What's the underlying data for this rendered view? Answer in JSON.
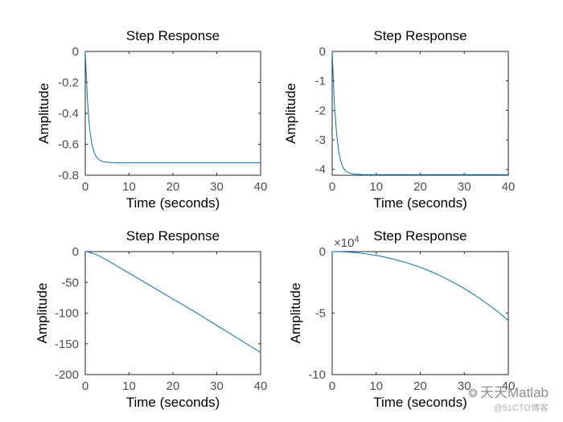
{
  "chart_data": [
    {
      "type": "line",
      "title": "Step Response",
      "xlabel": "Time (seconds)",
      "ylabel": "Amplitude",
      "xlim": [
        0,
        40
      ],
      "ylim": [
        -0.8,
        0
      ],
      "xticks": [
        0,
        10,
        20,
        30,
        40
      ],
      "yticks": [
        0,
        -0.2,
        -0.4,
        -0.6,
        -0.8
      ],
      "ytick_labels": [
        "0",
        "-0.2",
        "-0.4",
        "-0.6",
        "-0.8"
      ],
      "multiplier": "",
      "series": [
        {
          "color": "#0072bd",
          "x": [
            0,
            0.5,
            1,
            1.5,
            2,
            2.5,
            3,
            3.5,
            4,
            5,
            6,
            7,
            8,
            10,
            15,
            20,
            25,
            30,
            35,
            40
          ],
          "y": [
            0,
            -0.32,
            -0.5,
            -0.6,
            -0.65,
            -0.68,
            -0.697,
            -0.706,
            -0.711,
            -0.716,
            -0.718,
            -0.719,
            -0.72,
            -0.72,
            -0.72,
            -0.72,
            -0.72,
            -0.72,
            -0.72,
            -0.72
          ]
        }
      ]
    },
    {
      "type": "line",
      "title": "Step Response",
      "xlabel": "Time (seconds)",
      "ylabel": "Amplitude",
      "xlim": [
        0,
        40
      ],
      "ylim": [
        -4.2,
        0
      ],
      "xticks": [
        0,
        10,
        20,
        30,
        40
      ],
      "yticks": [
        0,
        -1,
        -2,
        -3,
        -4
      ],
      "ytick_labels": [
        "0",
        "-1",
        "-2",
        "-3",
        "-4"
      ],
      "multiplier": "",
      "series": [
        {
          "color": "#0072bd",
          "x": [
            0,
            0.5,
            1,
            1.5,
            2,
            2.5,
            3,
            3.5,
            4,
            5,
            6,
            7,
            8,
            10,
            15,
            20,
            25,
            30,
            35,
            40
          ],
          "y": [
            0,
            -1.8,
            -2.8,
            -3.4,
            -3.75,
            -3.95,
            -4.05,
            -4.1,
            -4.13,
            -4.16,
            -4.17,
            -4.18,
            -4.18,
            -4.18,
            -4.18,
            -4.18,
            -4.18,
            -4.18,
            -4.18,
            -4.18
          ]
        }
      ]
    },
    {
      "type": "line",
      "title": "Step Response",
      "xlabel": "Time (seconds)",
      "ylabel": "Amplitude",
      "xlim": [
        0,
        40
      ],
      "ylim": [
        -200,
        0
      ],
      "xticks": [
        0,
        10,
        20,
        30,
        40
      ],
      "yticks": [
        0,
        -50,
        -100,
        -150,
        -200
      ],
      "ytick_labels": [
        "0",
        "-50",
        "-100",
        "-150",
        "-200"
      ],
      "multiplier": "",
      "series": [
        {
          "color": "#0072bd",
          "x": [
            0,
            0.5,
            1,
            2,
            3,
            5,
            10,
            15,
            20,
            25,
            30,
            35,
            40
          ],
          "y": [
            0,
            -0.4,
            -1.3,
            -3.5,
            -6.5,
            -14,
            -35,
            -56,
            -77,
            -98,
            -120,
            -142,
            -164
          ]
        }
      ]
    },
    {
      "type": "line",
      "title": "Step Response",
      "xlabel": "Time (seconds)",
      "ylabel": "Amplitude",
      "xlim": [
        0,
        40
      ],
      "ylim": [
        -10,
        0
      ],
      "xticks": [
        0,
        10,
        20,
        30,
        40
      ],
      "yticks": [
        0,
        -5,
        -10
      ],
      "ytick_labels": [
        "0",
        "-5",
        "-10"
      ],
      "multiplier": "×10",
      "multiplier_exp": "4",
      "series": [
        {
          "color": "#0072bd",
          "x": [
            0,
            2,
            4,
            6,
            8,
            10,
            12,
            14,
            16,
            18,
            20,
            22,
            24,
            26,
            28,
            30,
            32,
            34,
            36,
            38,
            40
          ],
          "y": [
            0,
            -0.01,
            -0.05,
            -0.11,
            -0.2,
            -0.31,
            -0.45,
            -0.62,
            -0.81,
            -1.03,
            -1.28,
            -1.56,
            -1.87,
            -2.22,
            -2.59,
            -3.0,
            -3.45,
            -3.93,
            -4.45,
            -5.0,
            -5.6
          ]
        }
      ]
    }
  ],
  "watermark": {
    "main": "天天Matlab",
    "sub": "@51CTO博客",
    "icon": "wechat-icon"
  }
}
